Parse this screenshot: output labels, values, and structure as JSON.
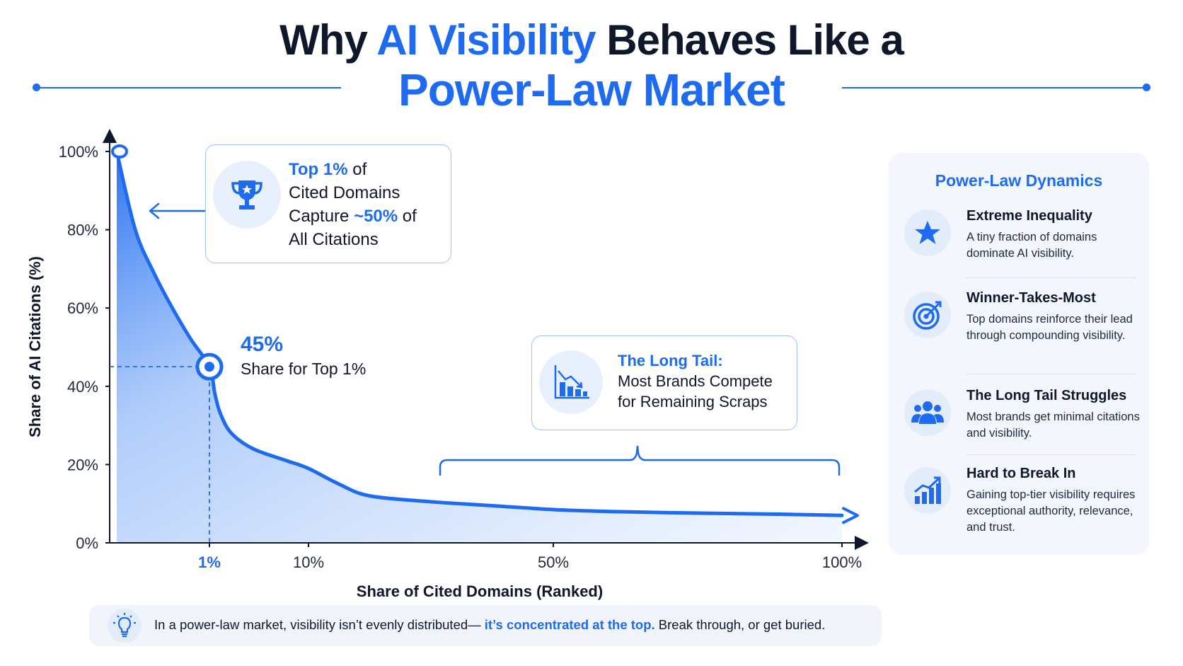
{
  "header": {
    "title_part1": "Why ",
    "title_highlight": "AI Visibility",
    "title_part2": " Behaves Like a",
    "title_line2": "Power-Law Market"
  },
  "colors": {
    "accent": "#1f6bef",
    "text": "#0f172a",
    "fill_light": "#eaf2fe"
  },
  "chart_data": {
    "type": "area",
    "x_scale": "custom-rank",
    "xlabel": "Share of Cited Domains (Ranked)",
    "ylabel": "Share of AI Citations (%)",
    "ylim": [
      0,
      100
    ],
    "y_ticks": [
      "0%",
      "20%",
      "40%",
      "60%",
      "80%",
      "100%"
    ],
    "x_ticks": [
      "1%",
      "10%",
      "50%",
      "100%"
    ],
    "series": [
      {
        "x": [
          0,
          0.2,
          0.4,
          0.6,
          0.8,
          1,
          1.5,
          2,
          3,
          5,
          8,
          10,
          15,
          20,
          30,
          40,
          50,
          60,
          70,
          80,
          90,
          100
        ],
        "y": [
          100,
          80,
          69,
          60,
          52,
          45,
          38,
          33,
          28,
          24,
          21,
          19,
          15,
          12,
          10.5,
          9.5,
          8.5,
          8,
          7.7,
          7.5,
          7.3,
          7
        ]
      }
    ],
    "marker": {
      "x": 1,
      "y": 45,
      "value": "45%",
      "label": "Share for Top 1%"
    },
    "top_marker": {
      "x": 0,
      "y": 100
    }
  },
  "callouts": {
    "top": {
      "line1_bold": "Top 1%",
      "line1_rest": " of",
      "line2": "Cited Domains",
      "line3_pre": "Capture ",
      "line3_bold": "~50%",
      "line3_post": " of",
      "line4": "All Citations",
      "icon": "trophy-icon"
    },
    "tail": {
      "title": "The Long Tail:",
      "line2": "Most Brands Compete",
      "line3": "for Remaining Scraps",
      "icon": "declining-chart-icon"
    }
  },
  "panel": {
    "title": "Power-Law Dynamics",
    "items": [
      {
        "icon": "star-icon",
        "title": "Extreme Inequality",
        "desc": "A tiny fraction of domains dominate AI visibility."
      },
      {
        "icon": "target-icon",
        "title": "Winner-Takes-Most",
        "desc": "Top domains reinforce their lead through compounding visibility."
      },
      {
        "icon": "users-icon",
        "title": "The Long Tail Struggles",
        "desc": "Most brands get minimal citations and visibility."
      },
      {
        "icon": "growth-chart-icon",
        "title": "Hard to Break In",
        "desc": "Gaining top-tier visibility requires exceptional authority, relevance, and trust."
      }
    ]
  },
  "footer": {
    "icon": "lightbulb-icon",
    "text_pre": "In a power-law market, visibility isn’t evenly distributed— ",
    "text_highlight": "it’s concentrated at the top.",
    "text_post": " Break through, or get buried."
  }
}
